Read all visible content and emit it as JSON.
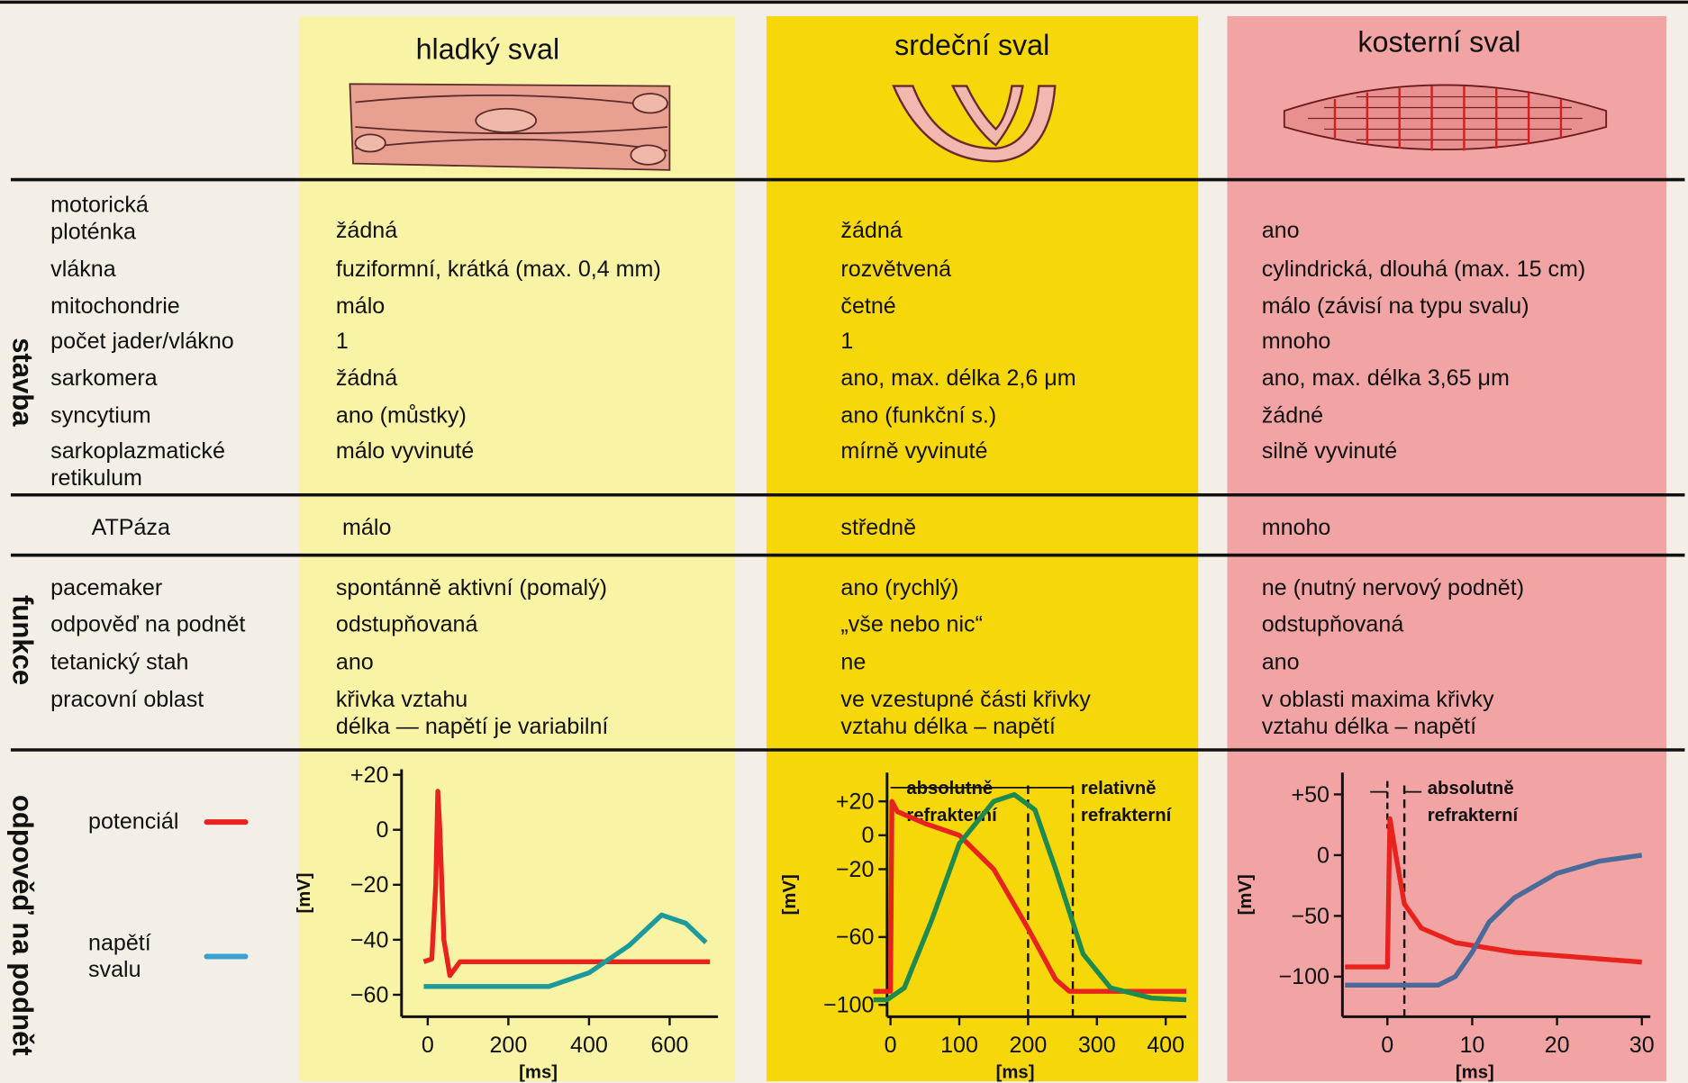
{
  "columns": [
    "hladký sval",
    "srdeční sval",
    "kosterní sval"
  ],
  "sections": [
    {
      "title": "stavba",
      "rows": [
        {
          "label": [
            "motorická",
            "ploténka"
          ],
          "cells": [
            "žádná",
            "žádná",
            "ano"
          ]
        },
        {
          "label": "vlákna",
          "cells": [
            "fuziformní, krátká (max. 0,4 mm)",
            "rozvětvená",
            "cylindrická, dlouhá (max. 15 cm)"
          ]
        },
        {
          "label": "mitochondrie",
          "cells": [
            "málo",
            "četné",
            "málo (závisí na typu svalu)"
          ]
        },
        {
          "label": "počet jader/vlákno",
          "cells": [
            "1",
            "1",
            "mnoho"
          ]
        },
        {
          "label": "sarkomera",
          "cells": [
            "žádná",
            "ano, max. délka 2,6 μm",
            "ano, max. délka 3,65 μm"
          ]
        },
        {
          "label": "syncytium",
          "cells": [
            "ano (můstky)",
            "ano (funkční s.)",
            "žádné"
          ]
        },
        {
          "label": [
            "sarkoplazmatické",
            "retikulum"
          ],
          "cells": [
            "málo vyvinuté",
            "mírně vyvinuté",
            "silně vyvinuté"
          ]
        }
      ]
    },
    {
      "rows": [
        {
          "label": "ATPáza",
          "cells": [
            "málo",
            "středně",
            "mnoho"
          ]
        }
      ]
    },
    {
      "title": "funkce",
      "rows": [
        {
          "label": "pacemaker",
          "cells": [
            "spontánně aktivní (pomalý)",
            "ano (rychlý)",
            "ne (nutný nervový podnět)"
          ]
        },
        {
          "label": "odpověď na podnět",
          "cells": [
            "odstupňovaná",
            "„vše nebo nic“",
            "odstupňovaná"
          ]
        },
        {
          "label": "tetanický stah",
          "cells": [
            "ano",
            "ne",
            "ano"
          ]
        },
        {
          "label": "pracovní oblast",
          "cells": [
            [
              "křivka vztahu",
              "délka — napětí je variabilní"
            ],
            [
              "ve vzestupné části křivky",
              "vztahu délka – napětí"
            ],
            [
              "v oblasti maxima křivky",
              "vztahu délka – napětí"
            ]
          ]
        }
      ]
    },
    {
      "title": "odpověď na podnět",
      "legend": [
        {
          "label": [
            "potenciál"
          ],
          "color": "#e8231e"
        },
        {
          "label": [
            "napětí",
            "svalu"
          ],
          "color": "#3aa0d0"
        }
      ],
      "charts": [
        {
          "type": "line",
          "xlabel": "[ms]",
          "ylabel": "[mV]",
          "xlim": [
            -65,
            720
          ],
          "ylim": [
            -68,
            22
          ],
          "xticks": [
            0,
            200,
            400,
            600
          ],
          "yticks": [
            {
              "value": 20,
              "label": "+20"
            },
            0,
            {
              "value": -20,
              "label": "−20"
            },
            {
              "value": -40,
              "label": "−40"
            },
            {
              "value": -60,
              "label": "−60"
            }
          ],
          "markers": [],
          "annotations": [],
          "series": [
            {
              "color": "#e8231e",
              "x": [
                -10,
                10,
                20,
                25,
                30,
                40,
                55,
                80,
                700
              ],
              "values": [
                -48,
                -47,
                -20,
                14,
                0,
                -40,
                -53,
                -48,
                -48
              ]
            },
            {
              "color": "#1a9a9a",
              "x": [
                -10,
                300,
                400,
                500,
                580,
                640,
                690
              ],
              "values": [
                -57,
                -57,
                -52,
                -42,
                -31,
                -34,
                -41
              ]
            }
          ]
        },
        {
          "type": "line",
          "xlabel": "[ms]",
          "ylabel": "[mV]",
          "xlim": [
            -5,
            430
          ],
          "ylim": [
            -107,
            37
          ],
          "xticks": [
            0,
            100,
            200,
            300,
            400
          ],
          "yticks": [
            {
              "value": 20,
              "label": "+20"
            },
            0,
            {
              "value": -20,
              "label": "−20"
            },
            {
              "value": -60,
              "label": "−60"
            },
            {
              "value": -100,
              "label": "−100"
            }
          ],
          "markers": [
            200,
            265
          ],
          "annotations": [
            [
              "absolutně",
              "refrakterní"
            ],
            [
              "relativně",
              "refrakterní"
            ]
          ],
          "series": [
            {
              "color": "#e8231e",
              "x": [
                -25,
                0,
                2,
                10,
                50,
                100,
                150,
                200,
                240,
                260,
                430
              ],
              "values": [
                -92,
                -92,
                20,
                14,
                7,
                0,
                -20,
                -55,
                -85,
                -92,
                -92
              ]
            },
            {
              "color": "#1e8a50",
              "x": [
                -25,
                -5,
                20,
                60,
                100,
                150,
                180,
                210,
                240,
                280,
                320,
                380,
                430
              ],
              "values": [
                -97,
                -97,
                -90,
                -50,
                -5,
                20,
                24,
                15,
                -20,
                -70,
                -90,
                -96,
                -97
              ]
            }
          ]
        },
        {
          "type": "line",
          "xlabel": "[ms]",
          "ylabel": "[mV]",
          "xlim": [
            -5.3,
            31
          ],
          "ylim": [
            -133,
            68
          ],
          "xticks": [
            0,
            10,
            20,
            30
          ],
          "yticks": [
            {
              "value": 50,
              "label": "+50"
            },
            0,
            {
              "value": -50,
              "label": "−50"
            },
            {
              "value": -100,
              "label": "−100"
            }
          ],
          "markers": [
            2
          ],
          "annotations": [
            [
              "absolutně",
              "refrakterní"
            ]
          ],
          "series": [
            {
              "color": "#e8231e",
              "x": [
                -5,
                0,
                0.3,
                1,
                2,
                4,
                8,
                15,
                30
              ],
              "values": [
                -92,
                -92,
                30,
                0,
                -40,
                -60,
                -72,
                -80,
                -88
              ]
            },
            {
              "color": "#4a6a9a",
              "x": [
                -5,
                6,
                8,
                10,
                12,
                15,
                20,
                25,
                30
              ],
              "values": [
                -107,
                -107,
                -100,
                -80,
                -55,
                -35,
                -15,
                -5,
                0
              ]
            }
          ]
        }
      ]
    }
  ]
}
